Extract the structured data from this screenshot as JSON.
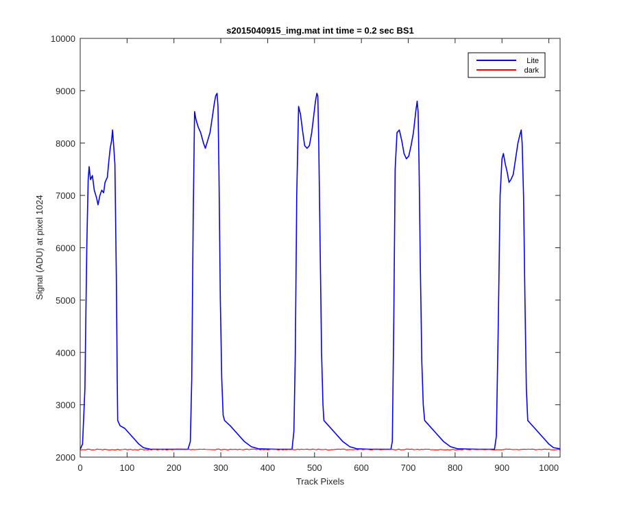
{
  "chart_data": {
    "type": "line",
    "title": "s2015040915_img.mat int time = 0.2 sec   BS1",
    "xlabel": "Track Pixels",
    "ylabel": "Signal (ADU) at pixel 1024",
    "xlim": [
      0,
      1024
    ],
    "ylim": [
      2000,
      10000
    ],
    "xticks": [
      0,
      100,
      200,
      300,
      400,
      500,
      600,
      700,
      800,
      900,
      1000
    ],
    "yticks": [
      2000,
      3000,
      4000,
      5000,
      6000,
      7000,
      8000,
      9000,
      10000
    ],
    "grid": false,
    "legend_position": "top-right",
    "series": [
      {
        "name": "Lite",
        "color": "#0000ff",
        "points": [
          [
            0,
            2150
          ],
          [
            5,
            2250
          ],
          [
            10,
            3300
          ],
          [
            14,
            6000
          ],
          [
            17,
            7300
          ],
          [
            19,
            7550
          ],
          [
            22,
            7300
          ],
          [
            26,
            7380
          ],
          [
            30,
            7100
          ],
          [
            35,
            6950
          ],
          [
            38,
            6820
          ],
          [
            42,
            7000
          ],
          [
            46,
            7100
          ],
          [
            50,
            7050
          ],
          [
            53,
            7250
          ],
          [
            58,
            7350
          ],
          [
            61,
            7650
          ],
          [
            64,
            7900
          ],
          [
            67,
            8050
          ],
          [
            69,
            8250
          ],
          [
            71,
            8000
          ],
          [
            74,
            7600
          ],
          [
            77,
            5500
          ],
          [
            79,
            3500
          ],
          [
            80,
            2700
          ],
          [
            85,
            2600
          ],
          [
            95,
            2550
          ],
          [
            105,
            2450
          ],
          [
            115,
            2350
          ],
          [
            125,
            2250
          ],
          [
            135,
            2180
          ],
          [
            150,
            2150
          ],
          [
            200,
            2150
          ],
          [
            230,
            2150
          ],
          [
            235,
            2300
          ],
          [
            238,
            3500
          ],
          [
            241,
            6500
          ],
          [
            244,
            8600
          ],
          [
            247,
            8450
          ],
          [
            252,
            8300
          ],
          [
            257,
            8200
          ],
          [
            263,
            8000
          ],
          [
            267,
            7900
          ],
          [
            272,
            8050
          ],
          [
            277,
            8200
          ],
          [
            282,
            8500
          ],
          [
            286,
            8750
          ],
          [
            289,
            8900
          ],
          [
            292,
            8950
          ],
          [
            294,
            8700
          ],
          [
            296,
            7500
          ],
          [
            299,
            5000
          ],
          [
            302,
            3500
          ],
          [
            305,
            2800
          ],
          [
            308,
            2700
          ],
          [
            320,
            2600
          ],
          [
            335,
            2450
          ],
          [
            350,
            2300
          ],
          [
            365,
            2200
          ],
          [
            380,
            2160
          ],
          [
            420,
            2150
          ],
          [
            452,
            2150
          ],
          [
            456,
            2500
          ],
          [
            459,
            4000
          ],
          [
            462,
            7000
          ],
          [
            466,
            8700
          ],
          [
            470,
            8550
          ],
          [
            475,
            8200
          ],
          [
            479,
            7950
          ],
          [
            484,
            7900
          ],
          [
            489,
            7950
          ],
          [
            494,
            8200
          ],
          [
            498,
            8500
          ],
          [
            502,
            8800
          ],
          [
            505,
            8950
          ],
          [
            507,
            8900
          ],
          [
            509,
            8000
          ],
          [
            512,
            6000
          ],
          [
            515,
            4000
          ],
          [
            518,
            3000
          ],
          [
            520,
            2700
          ],
          [
            530,
            2600
          ],
          [
            545,
            2450
          ],
          [
            560,
            2300
          ],
          [
            575,
            2200
          ],
          [
            590,
            2160
          ],
          [
            620,
            2150
          ],
          [
            663,
            2150
          ],
          [
            666,
            2300
          ],
          [
            669,
            4500
          ],
          [
            672,
            7500
          ],
          [
            676,
            8200
          ],
          [
            681,
            8250
          ],
          [
            686,
            8050
          ],
          [
            691,
            7800
          ],
          [
            696,
            7700
          ],
          [
            701,
            7750
          ],
          [
            706,
            7950
          ],
          [
            711,
            8200
          ],
          [
            716,
            8600
          ],
          [
            719,
            8800
          ],
          [
            721,
            8600
          ],
          [
            723,
            7600
          ],
          [
            726,
            5500
          ],
          [
            729,
            3800
          ],
          [
            732,
            3000
          ],
          [
            735,
            2700
          ],
          [
            745,
            2600
          ],
          [
            760,
            2450
          ],
          [
            775,
            2300
          ],
          [
            790,
            2200
          ],
          [
            805,
            2160
          ],
          [
            850,
            2150
          ],
          [
            884,
            2150
          ],
          [
            888,
            2400
          ],
          [
            892,
            4500
          ],
          [
            896,
            7000
          ],
          [
            900,
            7700
          ],
          [
            903,
            7800
          ],
          [
            907,
            7600
          ],
          [
            911,
            7450
          ],
          [
            915,
            7250
          ],
          [
            919,
            7300
          ],
          [
            924,
            7400
          ],
          [
            929,
            7700
          ],
          [
            934,
            8000
          ],
          [
            938,
            8150
          ],
          [
            941,
            8250
          ],
          [
            943,
            8000
          ],
          [
            946,
            7000
          ],
          [
            949,
            5000
          ],
          [
            952,
            3300
          ],
          [
            955,
            2700
          ],
          [
            960,
            2650
          ],
          [
            970,
            2550
          ],
          [
            980,
            2450
          ],
          [
            990,
            2350
          ],
          [
            1000,
            2250
          ],
          [
            1010,
            2180
          ],
          [
            1024,
            2160
          ]
        ]
      },
      {
        "name": "dark",
        "color": "#ff0000",
        "points": [
          [
            0,
            2145
          ],
          [
            1024,
            2145
          ]
        ]
      }
    ]
  }
}
